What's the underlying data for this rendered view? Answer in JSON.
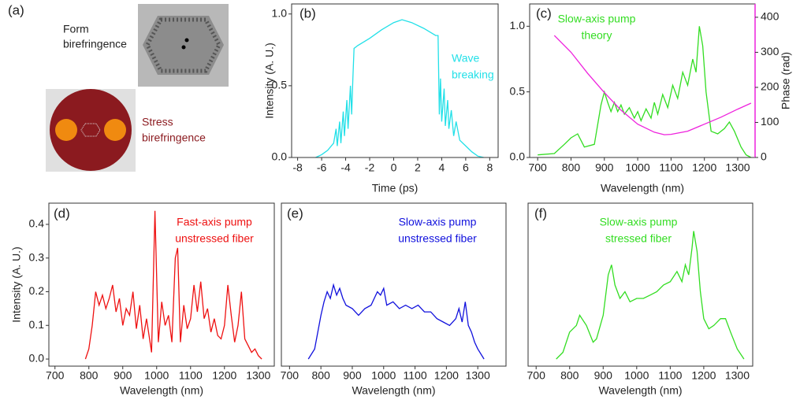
{
  "panel_a": {
    "panel_label": "(a)",
    "top_caption": [
      "Form",
      "birefringence"
    ],
    "bottom_caption": [
      "Stress",
      "birefringence"
    ]
  },
  "chart_data": [
    {
      "type": "line",
      "panel_label": "(b)",
      "xlabel": "Time (ps)",
      "ylabel": "Intensity (A. U.)",
      "annotation": [
        "Wave",
        "breaking"
      ],
      "xlim": [
        -8.5,
        8.7
      ],
      "xticks": [
        -8,
        -6,
        -4,
        -2,
        0,
        2,
        4,
        6,
        8
      ],
      "ylim": [
        0,
        1.07
      ],
      "yticks": [
        {
          "value": 0,
          "label": "0.0"
        },
        {
          "value": 0.5,
          "label": "0.5"
        },
        {
          "value": 1,
          "label": "1.0"
        }
      ],
      "series": [
        {
          "color": "#22e0e8",
          "x": [
            -6.5,
            -6,
            -5.5,
            -5,
            -4.8,
            -4.7,
            -4.5,
            -4.4,
            -4.2,
            -4.1,
            -3.9,
            -3.8,
            -3.6,
            -3.5,
            -3.4,
            -3.3,
            -3,
            -2,
            -1,
            0,
            0.7,
            1.5,
            2.5,
            3.5,
            3.7,
            3.8,
            3.9,
            4.0,
            4.2,
            4.3,
            4.5,
            4.6,
            4.8,
            5,
            5.2,
            5.5,
            6,
            6.5,
            7,
            7.5
          ],
          "values": [
            0,
            0.02,
            0.05,
            0.1,
            0.2,
            0.08,
            0.25,
            0.1,
            0.32,
            0.15,
            0.4,
            0.2,
            0.5,
            0.3,
            0.55,
            0.76,
            0.78,
            0.83,
            0.89,
            0.94,
            0.96,
            0.94,
            0.9,
            0.85,
            0.85,
            0.3,
            0.55,
            0.25,
            0.48,
            0.22,
            0.4,
            0.2,
            0.33,
            0.15,
            0.25,
            0.12,
            0.08,
            0.04,
            0.01,
            0
          ]
        }
      ]
    },
    {
      "type": "line",
      "panel_label": "(c)",
      "xlabel": "Wavelength (nm)",
      "y2label": "Phase (rad)",
      "annotation": [
        "Slow-axis pump",
        "theory"
      ],
      "xlim": [
        676,
        1352
      ],
      "xticks": [
        700,
        800,
        900,
        1000,
        1100,
        1200,
        1300
      ],
      "ylim": [
        0,
        1.17
      ],
      "yticks": [
        {
          "value": 0,
          "label": "0.0"
        },
        {
          "value": 0.5,
          "label": "0.5"
        },
        {
          "value": 1,
          "label": "1.0"
        }
      ],
      "y2lim": [
        0,
        438
      ],
      "y2ticks": [
        0,
        100,
        200,
        300,
        400
      ],
      "series": [
        {
          "color": "#33dd22",
          "x": [
            700,
            750,
            780,
            800,
            820,
            840,
            870,
            890,
            900,
            910,
            920,
            930,
            940,
            950,
            960,
            975,
            990,
            1000,
            1010,
            1025,
            1040,
            1050,
            1060,
            1075,
            1090,
            1105,
            1120,
            1135,
            1150,
            1165,
            1175,
            1185,
            1195,
            1205,
            1220,
            1240,
            1260,
            1275,
            1290,
            1310,
            1325,
            1340
          ],
          "values": [
            0.02,
            0.03,
            0.1,
            0.15,
            0.18,
            0.08,
            0.1,
            0.4,
            0.5,
            0.42,
            0.35,
            0.42,
            0.35,
            0.4,
            0.33,
            0.38,
            0.3,
            0.35,
            0.28,
            0.37,
            0.3,
            0.42,
            0.33,
            0.48,
            0.38,
            0.55,
            0.45,
            0.65,
            0.55,
            0.75,
            0.65,
            1.0,
            0.85,
            0.5,
            0.2,
            0.18,
            0.22,
            0.27,
            0.2,
            0.08,
            0.02,
            0
          ]
        },
        {
          "color": "#ee22dd",
          "axis": "y2",
          "x": [
            750,
            800,
            850,
            900,
            950,
            1000,
            1050,
            1080,
            1100,
            1150,
            1200,
            1250,
            1300,
            1340
          ],
          "values": [
            348,
            300,
            240,
            185,
            135,
            95,
            72,
            65,
            66,
            75,
            95,
            115,
            138,
            155
          ]
        }
      ]
    },
    {
      "type": "line",
      "panel_label": "(d)",
      "xlabel": "Wavelength (nm)",
      "ylabel": "Intensity (A. U.)",
      "annotation": [
        "Fast-axis pump",
        "unstressed fiber"
      ],
      "xlim": [
        682,
        1347
      ],
      "xticks": [
        700,
        800,
        900,
        1000,
        1100,
        1200,
        1300
      ],
      "ylim": [
        -0.021,
        0.463
      ],
      "yticks": [
        {
          "value": 0,
          "label": "0.0"
        },
        0.1,
        0.2,
        0.3,
        0.4
      ],
      "series": [
        {
          "color": "#ee1111",
          "x": [
            790,
            800,
            810,
            820,
            830,
            840,
            850,
            860,
            870,
            880,
            890,
            900,
            910,
            920,
            930,
            940,
            950,
            960,
            970,
            985,
            995,
            1005,
            1015,
            1025,
            1035,
            1045,
            1055,
            1062,
            1070,
            1080,
            1090,
            1100,
            1110,
            1120,
            1130,
            1140,
            1150,
            1160,
            1170,
            1180,
            1190,
            1200,
            1210,
            1220,
            1230,
            1240,
            1250,
            1260,
            1270,
            1280,
            1290,
            1300,
            1310
          ],
          "values": [
            0,
            0.03,
            0.1,
            0.2,
            0.16,
            0.19,
            0.15,
            0.18,
            0.22,
            0.14,
            0.18,
            0.1,
            0.15,
            0.13,
            0.2,
            0.09,
            0.16,
            0.06,
            0.12,
            0.02,
            0.44,
            0.05,
            0.17,
            0.1,
            0.13,
            0.05,
            0.3,
            0.33,
            0.05,
            0.16,
            0.09,
            0.12,
            0.22,
            0.14,
            0.23,
            0.12,
            0.15,
            0.08,
            0.12,
            0.07,
            0.06,
            0.1,
            0.22,
            0.13,
            0.05,
            0.1,
            0.2,
            0.06,
            0.04,
            0.02,
            0.03,
            0.01,
            0
          ]
        }
      ]
    },
    {
      "type": "line",
      "panel_label": "(e)",
      "xlabel": "Wavelength (nm)",
      "annotation": [
        "Slow-axis pump",
        "unstressed fiber"
      ],
      "xlim": [
        674,
        1390
      ],
      "xticks": [
        700,
        800,
        900,
        1000,
        1100,
        1200,
        1300
      ],
      "ylim": [
        -0.021,
        0.463
      ],
      "series": [
        {
          "color": "#1111dd",
          "x": [
            760,
            780,
            800,
            810,
            820,
            830,
            840,
            850,
            860,
            870,
            880,
            900,
            920,
            940,
            960,
            980,
            990,
            1000,
            1010,
            1030,
            1050,
            1070,
            1090,
            1110,
            1130,
            1150,
            1170,
            1190,
            1210,
            1230,
            1240,
            1250,
            1260,
            1270,
            1280,
            1290,
            1300,
            1320
          ],
          "values": [
            0,
            0.03,
            0.13,
            0.17,
            0.2,
            0.18,
            0.22,
            0.19,
            0.21,
            0.18,
            0.16,
            0.15,
            0.13,
            0.15,
            0.16,
            0.2,
            0.19,
            0.21,
            0.16,
            0.17,
            0.15,
            0.16,
            0.15,
            0.16,
            0.14,
            0.14,
            0.12,
            0.11,
            0.1,
            0.12,
            0.15,
            0.11,
            0.17,
            0.1,
            0.08,
            0.05,
            0.03,
            0
          ]
        }
      ]
    },
    {
      "type": "line",
      "panel_label": "(f)",
      "xlabel": "Wavelength (nm)",
      "annotation": [
        "Slow-axis pump",
        "stressed fiber"
      ],
      "xlim": [
        676,
        1346
      ],
      "xticks": [
        700,
        800,
        900,
        1000,
        1100,
        1200,
        1300
      ],
      "ylim": [
        -0.021,
        0.463
      ],
      "series": [
        {
          "color": "#33dd22",
          "x": [
            760,
            780,
            800,
            820,
            830,
            850,
            870,
            880,
            900,
            915,
            925,
            935,
            950,
            965,
            980,
            1000,
            1020,
            1040,
            1060,
            1080,
            1100,
            1120,
            1135,
            1145,
            1155,
            1165,
            1170,
            1180,
            1190,
            1200,
            1215,
            1230,
            1250,
            1265,
            1280,
            1300,
            1320
          ],
          "values": [
            0,
            0.02,
            0.08,
            0.1,
            0.13,
            0.1,
            0.05,
            0.06,
            0.13,
            0.25,
            0.28,
            0.22,
            0.18,
            0.2,
            0.17,
            0.18,
            0.18,
            0.19,
            0.2,
            0.22,
            0.23,
            0.26,
            0.23,
            0.28,
            0.25,
            0.33,
            0.38,
            0.32,
            0.2,
            0.12,
            0.09,
            0.1,
            0.12,
            0.12,
            0.08,
            0.03,
            0
          ]
        }
      ]
    }
  ]
}
